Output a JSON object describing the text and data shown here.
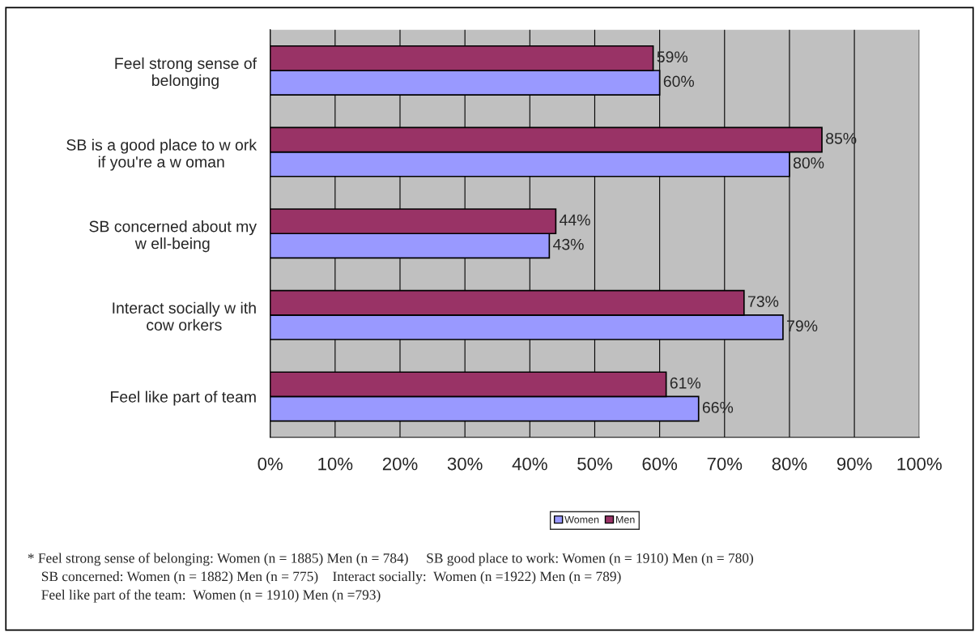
{
  "chart_data": {
    "type": "bar",
    "orientation": "horizontal",
    "categories": [
      "Feel strong sense of\nbelonging",
      "SB is a good place to w ork\nif you're a w oman",
      "SB concerned about my\nw ell-being",
      "Interact socially w ith\ncow orkers",
      "Feel like part of team"
    ],
    "series": [
      {
        "name": "Women",
        "color": "#9999ff",
        "values": [
          60,
          80,
          43,
          79,
          66
        ],
        "value_labels": [
          "60%",
          "80%",
          "43%",
          "79%",
          "66%"
        ]
      },
      {
        "name": "Men",
        "color": "#993366",
        "values": [
          59,
          85,
          44,
          73,
          61
        ],
        "value_labels": [
          "59%",
          "85%",
          "44%",
          "73%",
          "61%"
        ]
      }
    ],
    "xlim": [
      0,
      100
    ],
    "xticks": [
      {
        "value": 0,
        "label": "0%"
      },
      {
        "value": 10,
        "label": "10%"
      },
      {
        "value": 20,
        "label": "20%"
      },
      {
        "value": 30,
        "label": "30%"
      },
      {
        "value": 40,
        "label": "40%"
      },
      {
        "value": 50,
        "label": "50%"
      },
      {
        "value": 60,
        "label": "60%"
      },
      {
        "value": 70,
        "label": "70%"
      },
      {
        "value": 80,
        "label": "80%"
      },
      {
        "value": 90,
        "label": "90%"
      },
      {
        "value": 100,
        "label": "100%"
      }
    ],
    "grid": "x",
    "legend": "bottom",
    "annotations": [
      "* Feel strong sense of belonging: Women (n = 1885) Men (n = 784)     SB good place to work: Women (n = 1910) Men (n = 780)",
      "SB concerned: Women (n = 1882) Men (n = 775)    Interact socially:  Women (n =1922) Men (n = 789)",
      "Feel like part of the team:  Women (n = 1910) Men (n =793)"
    ]
  }
}
